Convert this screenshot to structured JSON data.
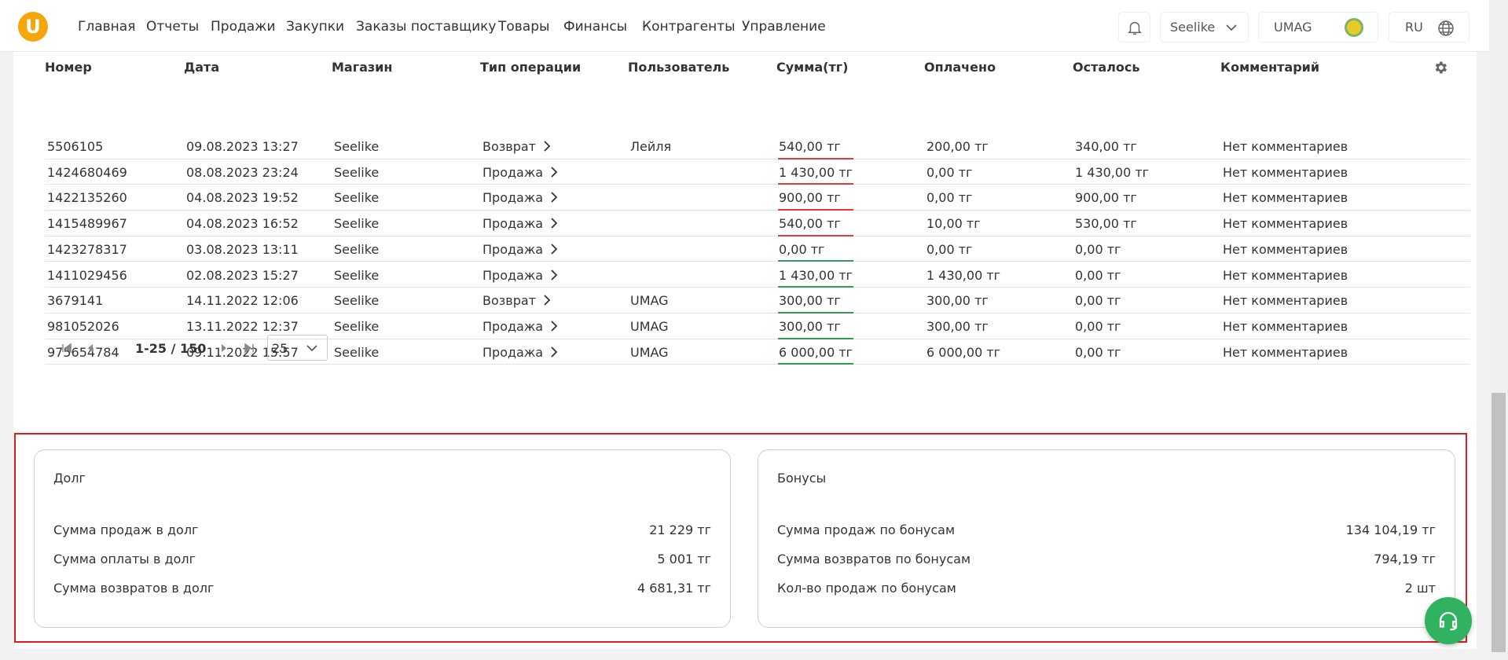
{
  "header": {
    "logo": "U",
    "nav": [
      "Главная",
      "Отчеты",
      "Продажи",
      "Закупки",
      "Заказы поставщику",
      "Товары",
      "Финансы",
      "Контрагенты",
      "Управление"
    ],
    "store": "Seelike",
    "account": "UMAG",
    "language": "RU"
  },
  "table": {
    "columns": [
      "Номер",
      "Дата",
      "Магазин",
      "Тип операции",
      "Пользователь",
      "Сумма(тг)",
      "Оплачено",
      "Осталось",
      "Комментарий"
    ],
    "rows": [
      [
        "5506105",
        "09.08.2023 13:27",
        "Seelike",
        "Возврат",
        "Лейля",
        "540,00 тг",
        "200,00 тг",
        "340,00 тг",
        "Нет комментариев"
      ],
      [
        "1424680469",
        "08.08.2023 23:24",
        "Seelike",
        "Продажа",
        "",
        "1 430,00 тг",
        "0,00 тг",
        "1 430,00 тг",
        "Нет комментариев"
      ],
      [
        "1422135260",
        "04.08.2023 19:52",
        "Seelike",
        "Продажа",
        "",
        "900,00 тг",
        "0,00 тг",
        "900,00 тг",
        "Нет комментариев"
      ],
      [
        "1415489967",
        "04.08.2023 16:52",
        "Seelike",
        "Продажа",
        "",
        "540,00 тг",
        "10,00 тг",
        "530,00 тг",
        "Нет комментариев"
      ],
      [
        "1423278317",
        "03.08.2023 13:11",
        "Seelike",
        "Продажа",
        "",
        "0,00 тг",
        "0,00 тг",
        "0,00 тг",
        "Нет комментариев"
      ],
      [
        "1411029456",
        "02.08.2023 15:27",
        "Seelike",
        "Продажа",
        "",
        "1 430,00 тг",
        "1 430,00 тг",
        "0,00 тг",
        "Нет комментариев"
      ],
      [
        "3679141",
        "14.11.2022 12:06",
        "Seelike",
        "Возврат",
        "UMAG",
        "300,00 тг",
        "300,00 тг",
        "0,00 тг",
        "Нет комментариев"
      ],
      [
        "981052026",
        "13.11.2022 12:37",
        "Seelike",
        "Продажа",
        "UMAG",
        "300,00 тг",
        "300,00 тг",
        "0,00 тг",
        "Нет комментариев"
      ],
      [
        "975654784",
        "09.11.2022 15:57",
        "Seelike",
        "Продажа",
        "UMAG",
        "6 000,00 тг",
        "6 000,00 тг",
        "0,00 тг",
        "Нет комментариев"
      ]
    ],
    "sum_colors": [
      "#e53935",
      "#e53935",
      "#e53935",
      "#e53935",
      "#2e9e5b",
      "#2e9e5b",
      "#2e9e5b",
      "#2e9e5b",
      "#2e9e5b"
    ]
  },
  "pagination": {
    "range": "1-25 / 150",
    "page_size": "25"
  },
  "cards": [
    {
      "title": "Долг",
      "rows": [
        {
          "label": "Сумма продаж в долг",
          "value": "21 229 тг"
        },
        {
          "label": "Сумма оплаты в долг",
          "value": "5 001 тг"
        },
        {
          "label": "Сумма возвратов в долг",
          "value": "4 681,31 тг"
        }
      ]
    },
    {
      "title": "Бонусы",
      "rows": [
        {
          "label": "Сумма продаж по бонусам",
          "value": "134 104,19 тг"
        },
        {
          "label": "Сумма возвратов по бонусам",
          "value": "794,19 тг"
        },
        {
          "label": "Кол-во продаж по бонусам",
          "value": "2 шт"
        }
      ]
    }
  ]
}
